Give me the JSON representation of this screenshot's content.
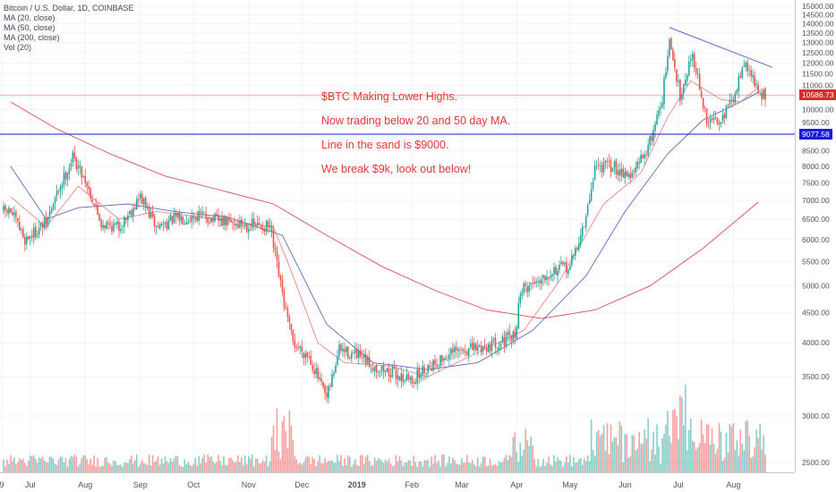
{
  "legend": {
    "symbol": "Bitcoin / U.S. Dollar, 1D, COINBASE",
    "ma20": "MA (20, close)",
    "ma50": "MA (50, close)",
    "ma200": "MA (200, close)",
    "vol": "Vol (20)"
  },
  "annotation": {
    "line1": "$BTC Making Lower Highs.",
    "line2": "Now trading below 20 and 50 day MA.",
    "line3": "Line in the sand is $9000.",
    "line4": "We break $9k, look out below!"
  },
  "price_tags": {
    "current": "10586.73",
    "support": "9077.58"
  },
  "colors": {
    "up": "#26a69a",
    "down": "#ef5350",
    "ma20": "#e57373",
    "ma50": "#3f51b5",
    "ma200": "#d32f2f",
    "support_line": "#0d19d8",
    "trend_line": "#5c6bc0",
    "annotation": "#e53935",
    "current_tag": "#d32f2f",
    "support_tag": "#1a1adb"
  },
  "chart_data": {
    "type": "candlestick",
    "symbol": "Bitcoin / U.S. Dollar",
    "interval": "1D",
    "exchange": "COINBASE",
    "x_tick_labels": [
      "9",
      "Jul",
      "Aug",
      "Sep",
      "Oct",
      "Nov",
      "Dec",
      "2019",
      "Feb",
      "Mar",
      "Apr",
      "May",
      "Jun",
      "Jul",
      "Aug"
    ],
    "y_tick_labels": [
      "15000.00",
      "14500.00",
      "14000.00",
      "13500.00",
      "13000.00",
      "12500.00",
      "12000.00",
      "11500.00",
      "11000.00",
      "10500.00",
      "10000.00",
      "9500.00",
      "9000.00",
      "8500.00",
      "8000.00",
      "7500.00",
      "7000.00",
      "6500.00",
      "6000.00",
      "5500.00",
      "5000.00",
      "4500.00",
      "4000.00",
      "3500.00",
      "3000.00",
      "2500.00"
    ],
    "ylim": [
      2200,
      15200
    ],
    "scale": "log",
    "price_path": [
      {
        "date": "2018-06-20",
        "close": 6700
      },
      {
        "date": "2018-06-28",
        "close": 6000
      },
      {
        "date": "2018-07-10",
        "close": 6400
      },
      {
        "date": "2018-07-17",
        "close": 7300
      },
      {
        "date": "2018-07-25",
        "close": 8300
      },
      {
        "date": "2018-08-01",
        "close": 7600
      },
      {
        "date": "2018-08-10",
        "close": 6400
      },
      {
        "date": "2018-08-20",
        "close": 6300
      },
      {
        "date": "2018-09-01",
        "close": 7100
      },
      {
        "date": "2018-09-10",
        "close": 6300
      },
      {
        "date": "2018-09-20",
        "close": 6500
      },
      {
        "date": "2018-10-05",
        "close": 6600
      },
      {
        "date": "2018-10-15",
        "close": 6450
      },
      {
        "date": "2018-11-01",
        "close": 6350
      },
      {
        "date": "2018-11-13",
        "close": 6300
      },
      {
        "date": "2018-11-16",
        "close": 5600
      },
      {
        "date": "2018-11-22",
        "close": 4500
      },
      {
        "date": "2018-11-26",
        "close": 4000
      },
      {
        "date": "2018-12-05",
        "close": 3800
      },
      {
        "date": "2018-12-15",
        "close": 3200
      },
      {
        "date": "2018-12-22",
        "close": 3900
      },
      {
        "date": "2019-01-01",
        "close": 3800
      },
      {
        "date": "2019-01-10",
        "close": 3650
      },
      {
        "date": "2019-02-01",
        "close": 3450
      },
      {
        "date": "2019-02-10",
        "close": 3650
      },
      {
        "date": "2019-02-25",
        "close": 3850
      },
      {
        "date": "2019-03-15",
        "close": 3950
      },
      {
        "date": "2019-03-31",
        "close": 4100
      },
      {
        "date": "2019-04-03",
        "close": 4900
      },
      {
        "date": "2019-04-20",
        "close": 5300
      },
      {
        "date": "2019-05-01",
        "close": 5400
      },
      {
        "date": "2019-05-10",
        "close": 6500
      },
      {
        "date": "2019-05-15",
        "close": 8000
      },
      {
        "date": "2019-05-25",
        "close": 8000
      },
      {
        "date": "2019-06-05",
        "close": 7700
      },
      {
        "date": "2019-06-15",
        "close": 8800
      },
      {
        "date": "2019-06-22",
        "close": 10500
      },
      {
        "date": "2019-06-26",
        "close": 13000
      },
      {
        "date": "2019-07-02",
        "close": 10600
      },
      {
        "date": "2019-07-09",
        "close": 12500
      },
      {
        "date": "2019-07-17",
        "close": 9500
      },
      {
        "date": "2019-07-25",
        "close": 9700
      },
      {
        "date": "2019-08-02",
        "close": 10500
      },
      {
        "date": "2019-08-06",
        "close": 12000
      },
      {
        "date": "2019-08-12",
        "close": 11400
      },
      {
        "date": "2019-08-15",
        "close": 10587
      }
    ],
    "ma20_path": [
      {
        "date": "2018-06-20",
        "value": 7100
      },
      {
        "date": "2018-07-10",
        "value": 6300
      },
      {
        "date": "2018-07-28",
        "value": 7400
      },
      {
        "date": "2018-08-20",
        "value": 6500
      },
      {
        "date": "2018-09-10",
        "value": 6700
      },
      {
        "date": "2018-10-15",
        "value": 6500
      },
      {
        "date": "2018-11-15",
        "value": 6300
      },
      {
        "date": "2018-11-25",
        "value": 5300
      },
      {
        "date": "2018-12-10",
        "value": 4000
      },
      {
        "date": "2018-12-25",
        "value": 3700
      },
      {
        "date": "2019-01-20",
        "value": 3650
      },
      {
        "date": "2019-02-10",
        "value": 3500
      },
      {
        "date": "2019-03-10",
        "value": 3850
      },
      {
        "date": "2019-04-05",
        "value": 4200
      },
      {
        "date": "2019-04-25",
        "value": 5100
      },
      {
        "date": "2019-05-20",
        "value": 6900
      },
      {
        "date": "2019-06-10",
        "value": 7800
      },
      {
        "date": "2019-06-25",
        "value": 9700
      },
      {
        "date": "2019-07-08",
        "value": 11200
      },
      {
        "date": "2019-07-25",
        "value": 10400
      },
      {
        "date": "2019-08-05",
        "value": 10300
      },
      {
        "date": "2019-08-15",
        "value": 10900
      }
    ],
    "ma50_path": [
      {
        "date": "2018-06-20",
        "value": 8000
      },
      {
        "date": "2018-07-10",
        "value": 6500
      },
      {
        "date": "2018-07-28",
        "value": 6800
      },
      {
        "date": "2018-08-25",
        "value": 6900
      },
      {
        "date": "2018-09-20",
        "value": 6700
      },
      {
        "date": "2018-10-20",
        "value": 6550
      },
      {
        "date": "2018-11-20",
        "value": 6100
      },
      {
        "date": "2018-12-15",
        "value": 4300
      },
      {
        "date": "2019-01-10",
        "value": 3700
      },
      {
        "date": "2019-02-10",
        "value": 3600
      },
      {
        "date": "2019-03-10",
        "value": 3700
      },
      {
        "date": "2019-04-10",
        "value": 4200
      },
      {
        "date": "2019-05-10",
        "value": 5200
      },
      {
        "date": "2019-06-01",
        "value": 6700
      },
      {
        "date": "2019-06-25",
        "value": 8400
      },
      {
        "date": "2019-07-15",
        "value": 9600
      },
      {
        "date": "2019-08-05",
        "value": 10300
      },
      {
        "date": "2019-08-15",
        "value": 10700
      }
    ],
    "ma200_path": [
      {
        "date": "2018-06-20",
        "value": 10300
      },
      {
        "date": "2018-07-15",
        "value": 9300
      },
      {
        "date": "2018-08-15",
        "value": 8400
      },
      {
        "date": "2018-09-15",
        "value": 7700
      },
      {
        "date": "2018-10-15",
        "value": 7300
      },
      {
        "date": "2018-11-15",
        "value": 6900
      },
      {
        "date": "2018-12-15",
        "value": 6100
      },
      {
        "date": "2019-01-15",
        "value": 5400
      },
      {
        "date": "2019-02-15",
        "value": 4900
      },
      {
        "date": "2019-03-15",
        "value": 4550
      },
      {
        "date": "2019-04-15",
        "value": 4400
      },
      {
        "date": "2019-05-15",
        "value": 4550
      },
      {
        "date": "2019-06-15",
        "value": 5000
      },
      {
        "date": "2019-07-15",
        "value": 5800
      },
      {
        "date": "2019-08-15",
        "value": 6950
      }
    ],
    "trend_line": [
      {
        "date": "2019-06-26",
        "value": 13800
      },
      {
        "date": "2019-08-23",
        "value": 11800
      }
    ],
    "support_line": 9077.58,
    "current_price": 10586.73
  }
}
